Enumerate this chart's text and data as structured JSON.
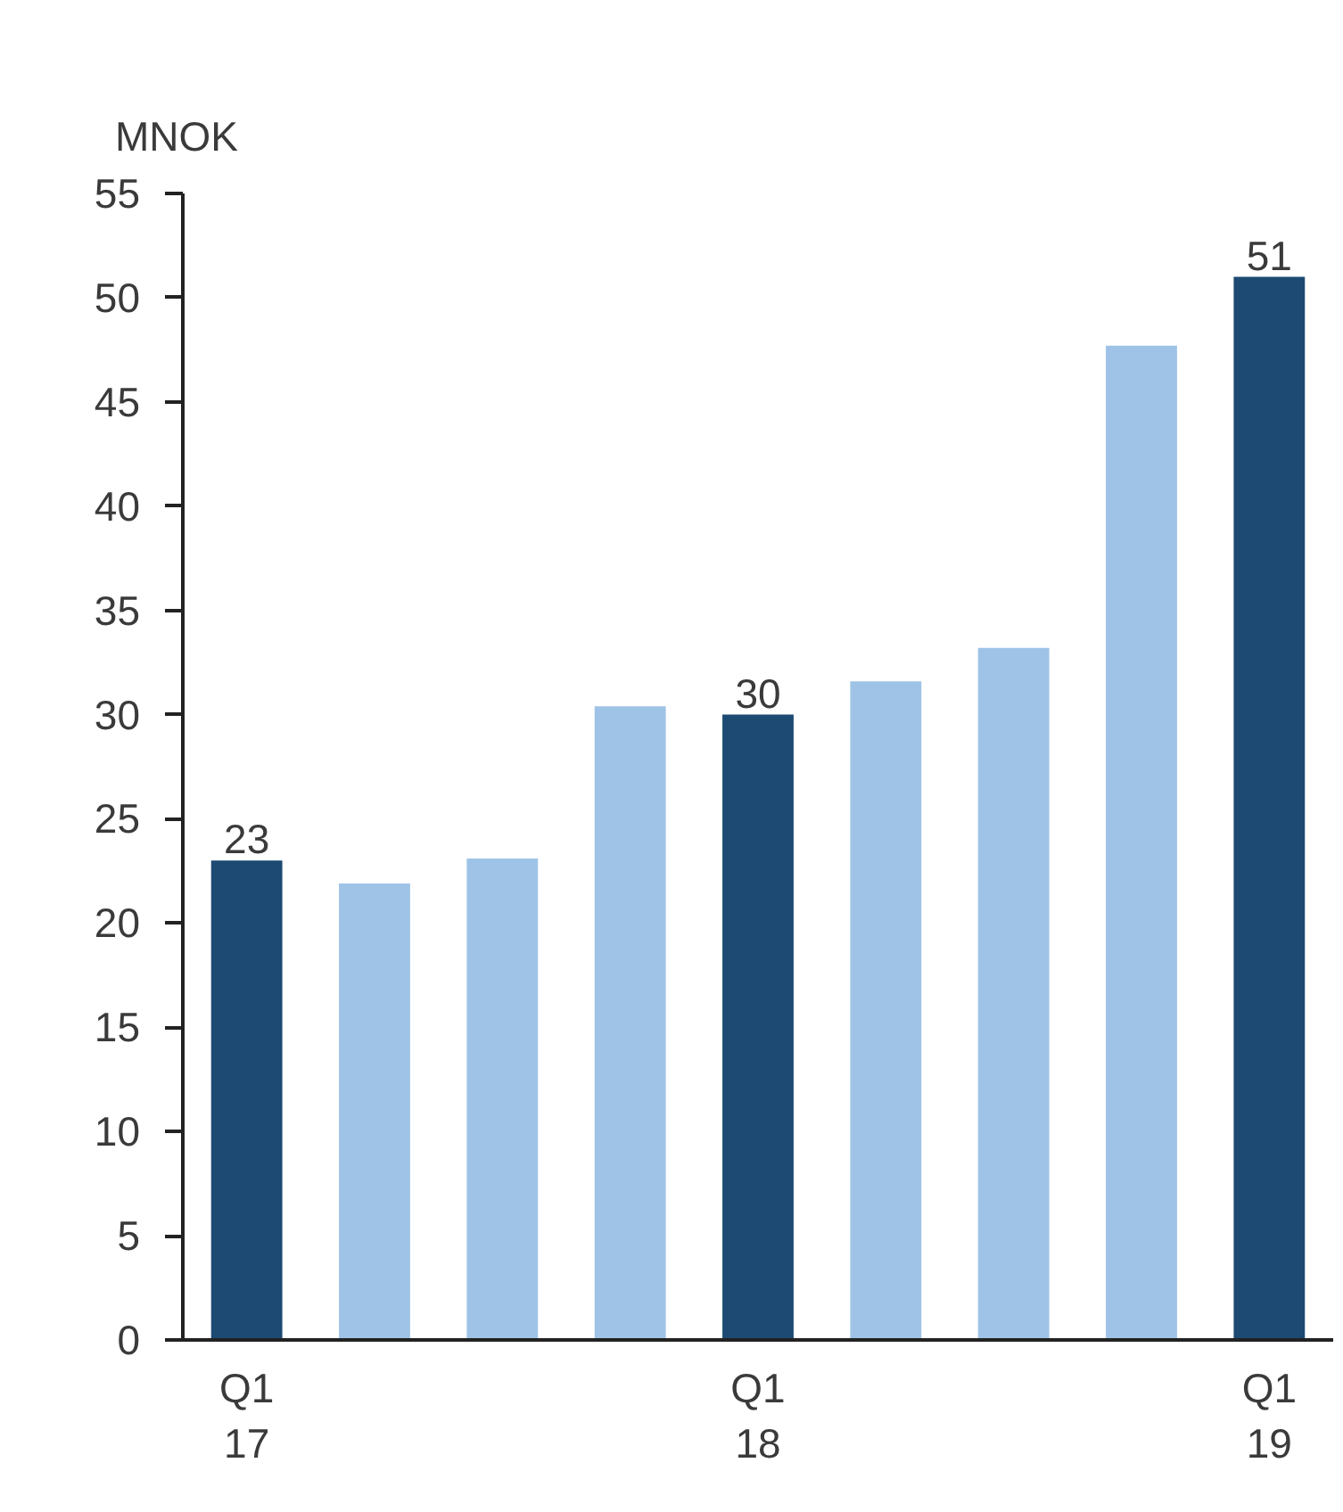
{
  "chart_data": {
    "type": "bar",
    "ylabel": "MNOK",
    "categories": [
      "Q1\n17",
      null,
      null,
      null,
      "Q1\n18",
      null,
      null,
      null,
      "Q1\n19"
    ],
    "values": [
      23,
      21.9,
      23.1,
      30.4,
      30,
      31.6,
      33.2,
      47.7,
      51
    ],
    "colors": [
      "#1c4a72",
      "#9ec3e6",
      "#9ec3e6",
      "#9ec3e6",
      "#1c4a72",
      "#9ec3e6",
      "#9ec3e6",
      "#9ec3e6",
      "#1c4a72"
    ],
    "value_labels": [
      "23",
      null,
      null,
      null,
      "30",
      null,
      null,
      null,
      "51"
    ],
    "ylim": [
      0,
      55
    ],
    "yticks": [
      0,
      5,
      10,
      15,
      20,
      25,
      30,
      35,
      40,
      45,
      50,
      55
    ],
    "grid": false
  }
}
